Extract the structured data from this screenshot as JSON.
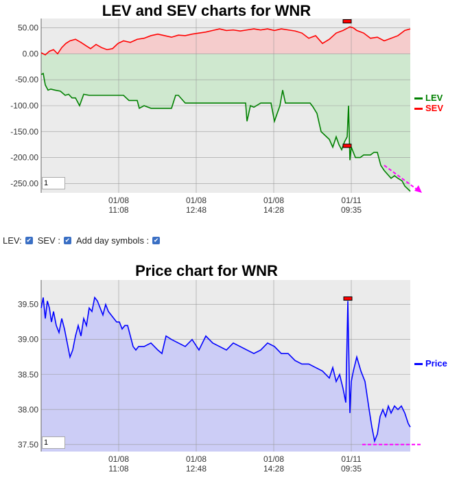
{
  "controls": {
    "lev_label": "LEV:",
    "sev_label": "SEV :",
    "day_label": "Add day symbols :"
  },
  "chart_data": [
    {
      "type": "area",
      "title": "LEV and SEV charts for WNR",
      "yticks": [
        "50.00",
        "0.00",
        "-50.00",
        "-100.00",
        "-150.00",
        "-200.00",
        "-250.00"
      ],
      "ytick_values": [
        50,
        0,
        -50,
        -100,
        -150,
        -200,
        -250
      ],
      "ylim": [
        -268,
        68
      ],
      "xticks": [
        {
          "date": "01/08",
          "time": "11:08"
        },
        {
          "date": "01/08",
          "time": "12:48"
        },
        {
          "date": "01/08",
          "time": "14:28"
        },
        {
          "date": "01/11",
          "time": "09:35"
        }
      ],
      "grid": true,
      "legend_position": "right",
      "input_value": "1",
      "series": [
        {
          "name": "LEV",
          "color": "#008000",
          "x": [
            0,
            3,
            6,
            10,
            14,
            20,
            28,
            35,
            40,
            45,
            50,
            56,
            62,
            70,
            82,
            100,
            120,
            128,
            132,
            140,
            143,
            150,
            160,
            175,
            190,
            196,
            200,
            210,
            220,
            230,
            238,
            245,
            250,
            262,
            275,
            290,
            298,
            300,
            305,
            310,
            320,
            330,
            335,
            340,
            348,
            352,
            356,
            362,
            368,
            372,
            378,
            385,
            392,
            396,
            402,
            408,
            416,
            420,
            425,
            430,
            434,
            438,
            442,
            446,
            448,
            450,
            452,
            458,
            465,
            470,
            480,
            485,
            490,
            495,
            500,
            510,
            515,
            520,
            526,
            530,
            538
          ],
          "y": [
            -40,
            -38,
            -60,
            -70,
            -68,
            -70,
            -72,
            -80,
            -78,
            -85,
            -85,
            -100,
            -78,
            -80,
            -80,
            -80,
            -80,
            -90,
            -90,
            -90,
            -105,
            -100,
            -105,
            -105,
            -105,
            -80,
            -80,
            -95,
            -95,
            -95,
            -95,
            -95,
            -95,
            -95,
            -95,
            -95,
            -95,
            -130,
            -100,
            -103,
            -95,
            -95,
            -95,
            -130,
            -100,
            -70,
            -95,
            -95,
            -95,
            -95,
            -95,
            -95,
            -95,
            -102,
            -115,
            -150,
            -160,
            -165,
            -180,
            -160,
            -175,
            -185,
            -170,
            -160,
            -100,
            -205,
            -180,
            -200,
            -200,
            -195,
            -195,
            -190,
            -190,
            -215,
            -225,
            -240,
            -235,
            -240,
            -245,
            -255,
            -265
          ]
        },
        {
          "name": "SEV",
          "color": "#ff0000",
          "x": [
            0,
            6,
            12,
            18,
            24,
            30,
            36,
            42,
            50,
            58,
            66,
            72,
            80,
            88,
            96,
            104,
            112,
            120,
            130,
            140,
            150,
            160,
            170,
            180,
            190,
            200,
            210,
            220,
            230,
            240,
            250,
            260,
            270,
            280,
            290,
            300,
            310,
            320,
            330,
            340,
            350,
            360,
            370,
            380,
            390,
            400,
            410,
            420,
            430,
            440,
            450,
            455,
            460,
            470,
            480,
            490,
            500,
            510,
            520,
            530,
            538
          ],
          "y": [
            2,
            -2,
            5,
            8,
            0,
            12,
            20,
            25,
            28,
            22,
            15,
            10,
            18,
            12,
            8,
            10,
            20,
            25,
            22,
            28,
            30,
            35,
            38,
            35,
            32,
            36,
            35,
            38,
            40,
            42,
            45,
            48,
            45,
            46,
            44,
            46,
            48,
            46,
            48,
            45,
            48,
            46,
            44,
            40,
            30,
            35,
            20,
            28,
            40,
            45,
            52,
            50,
            45,
            40,
            30,
            32,
            25,
            30,
            35,
            45,
            48
          ]
        }
      ],
      "markers": [
        {
          "series": "SEV",
          "x": 446,
          "y": 62
        },
        {
          "series": "LEV",
          "x": 446,
          "y": -178
        }
      ],
      "trend_arrow": {
        "color": "#ff00ff",
        "x": [
          500,
          555
        ],
        "y": [
          -215,
          -268
        ]
      }
    },
    {
      "type": "area",
      "title": "Price chart for WNR",
      "yticks": [
        "39.50",
        "39.00",
        "38.50",
        "38.00",
        "37.50"
      ],
      "ytick_values": [
        39.5,
        39.0,
        38.5,
        38.0,
        37.5
      ],
      "ylim": [
        37.4,
        39.85
      ],
      "xticks": [
        {
          "date": "01/08",
          "time": "11:08"
        },
        {
          "date": "01/08",
          "time": "12:48"
        },
        {
          "date": "01/08",
          "time": "14:28"
        },
        {
          "date": "01/11",
          "time": "09:35"
        }
      ],
      "grid": true,
      "legend_position": "right",
      "input_value": "1",
      "series": [
        {
          "name": "Price",
          "color": "#0000ff",
          "x": [
            0,
            3,
            6,
            9,
            12,
            15,
            18,
            22,
            26,
            30,
            34,
            38,
            42,
            46,
            50,
            54,
            58,
            62,
            66,
            70,
            74,
            78,
            82,
            86,
            90,
            94,
            98,
            102,
            106,
            110,
            114,
            118,
            122,
            126,
            130,
            134,
            138,
            142,
            150,
            160,
            170,
            176,
            182,
            190,
            200,
            210,
            220,
            230,
            240,
            250,
            260,
            270,
            280,
            290,
            300,
            310,
            320,
            330,
            340,
            350,
            360,
            370,
            380,
            390,
            400,
            410,
            420,
            425,
            430,
            435,
            440,
            444,
            447,
            450,
            452,
            455,
            460,
            466,
            472,
            478,
            482,
            486,
            490,
            494,
            498,
            502,
            506,
            510,
            515,
            520,
            525,
            530,
            535,
            538
          ],
          "y": [
            39.45,
            39.6,
            39.3,
            39.55,
            39.45,
            39.25,
            39.4,
            39.2,
            39.1,
            39.3,
            39.15,
            38.95,
            38.75,
            38.85,
            39.05,
            39.2,
            39.05,
            39.3,
            39.2,
            39.45,
            39.4,
            39.6,
            39.55,
            39.45,
            39.35,
            39.5,
            39.4,
            39.35,
            39.3,
            39.25,
            39.25,
            39.15,
            39.2,
            39.2,
            39.05,
            38.9,
            38.85,
            38.9,
            38.9,
            38.95,
            38.85,
            38.8,
            39.05,
            39.0,
            38.95,
            38.9,
            39.0,
            38.85,
            39.05,
            38.95,
            38.9,
            38.85,
            38.95,
            38.9,
            38.85,
            38.8,
            38.85,
            38.95,
            38.9,
            38.8,
            38.8,
            38.7,
            38.65,
            38.65,
            38.6,
            38.55,
            38.45,
            38.6,
            38.4,
            38.5,
            38.3,
            38.1,
            39.55,
            37.95,
            38.4,
            38.55,
            38.75,
            38.55,
            38.4,
            38.0,
            37.75,
            37.55,
            37.65,
            37.9,
            38.0,
            37.9,
            38.05,
            37.95,
            38.05,
            38.0,
            38.05,
            37.95,
            37.8,
            37.75
          ]
        }
      ],
      "markers": [
        {
          "series": "Price",
          "x": 447,
          "y": 39.58
        }
      ],
      "support_line": {
        "color": "#ff00ff",
        "x": [
          468,
          555
        ],
        "y": 37.5
      }
    }
  ]
}
